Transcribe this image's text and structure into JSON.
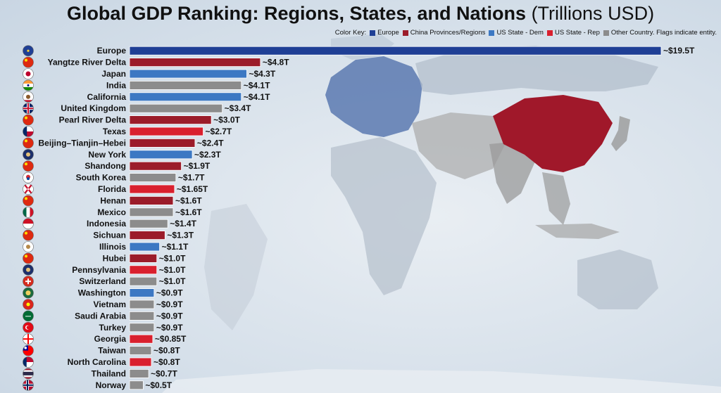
{
  "header": {
    "title": "Global GDP Ranking: Regions, States, and Nations",
    "unit": "(Trillions USD)"
  },
  "legend": {
    "label": "Color Key:",
    "items": [
      {
        "label": "Europe",
        "color": "#1f3f95"
      },
      {
        "label": "China Provinces/Regions",
        "color": "#9b1c2a"
      },
      {
        "label": "US State - Dem",
        "color": "#3c78c3"
      },
      {
        "label": "US State - Rep",
        "color": "#d9202e"
      },
      {
        "label": "Other Country. Flags indicate entity.",
        "color": "#8c8c8c"
      }
    ]
  },
  "chart_data": {
    "type": "bar",
    "orientation": "horizontal",
    "title": "Global GDP Ranking: Regions, States, and Nations (Trillions USD)",
    "xlabel": "",
    "ylabel": "",
    "categories": [
      "Europe",
      "Yangtze River Delta",
      "Japan",
      "India",
      "California",
      "United Kingdom",
      "Pearl River Delta",
      "Texas",
      "Beijing–Tianjin–Hebei",
      "New York",
      "Shandong",
      "South Korea",
      "Florida",
      "Henan",
      "Mexico",
      "Indonesia",
      "Sichuan",
      "Illinois",
      "Hubei",
      "Pennsylvania",
      "Switzerland",
      "Washington",
      "Vietnam",
      "Saudi Arabia",
      "Turkey",
      "Georgia",
      "Taiwan",
      "North Carolina",
      "Thailand",
      "Norway"
    ],
    "values": [
      19.5,
      4.8,
      4.3,
      4.1,
      4.1,
      3.4,
      3.0,
      2.7,
      2.4,
      2.3,
      1.9,
      1.7,
      1.65,
      1.6,
      1.6,
      1.4,
      1.3,
      1.1,
      1.0,
      1.0,
      1.0,
      0.9,
      0.9,
      0.9,
      0.9,
      0.85,
      0.8,
      0.8,
      0.7,
      0.5
    ],
    "value_labels": [
      "~$19.5T",
      "~$4.8T",
      "~$4.3T",
      "~$4.1T",
      "~$4.1T",
      "~$3.4T",
      "~$3.0T",
      "~$2.7T",
      "~$2.4T",
      "~$2.3T",
      "~$1.9T",
      "~$1.7T",
      "~$1.65T",
      "~$1.6T",
      "~$1.6T",
      "~$1.4T",
      "~$1.3T",
      "~$1.1T",
      "~$1.0T",
      "~$1.0T",
      "~$1.0T",
      "~$0.9T",
      "~$0.9T",
      "~$0.9T",
      "~$0.9T",
      "~$0.85T",
      "~$0.8T",
      "~$0.8T",
      "~$0.7T",
      "~$0.5T"
    ],
    "groups": [
      "europe",
      "china",
      "dem",
      "other",
      "dem",
      "other",
      "china",
      "rep",
      "china",
      "dem",
      "china",
      "other",
      "rep",
      "china",
      "other",
      "other",
      "china",
      "dem",
      "china",
      "rep",
      "other",
      "dem",
      "other",
      "other",
      "other",
      "rep",
      "other",
      "rep",
      "other",
      "other"
    ],
    "colors": {
      "europe": "#1f3f95",
      "china": "#9b1c2a",
      "dem": "#3c78c3",
      "rep": "#d9202e",
      "other": "#8c8c8c"
    },
    "flags": [
      "eu-flag-icon",
      "china-flag-icon",
      "japan-flag-icon",
      "india-flag-icon",
      "california-flag-icon",
      "uk-flag-icon",
      "china-flag-icon",
      "texas-flag-icon",
      "china-flag-icon",
      "new-york-flag-icon",
      "china-flag-icon",
      "south-korea-flag-icon",
      "florida-flag-icon",
      "china-flag-icon",
      "mexico-flag-icon",
      "indonesia-flag-icon",
      "china-flag-icon",
      "illinois-flag-icon",
      "china-flag-icon",
      "pennsylvania-flag-icon",
      "switzerland-flag-icon",
      "washington-flag-icon",
      "vietnam-flag-icon",
      "saudi-arabia-flag-icon",
      "turkey-flag-icon",
      "georgia-flag-icon",
      "taiwan-flag-icon",
      "north-carolina-flag-icon",
      "thailand-flag-icon",
      "norway-flag-icon"
    ],
    "xlim": [
      0,
      19.5
    ],
    "grid": false,
    "legend_position": "top-right"
  }
}
